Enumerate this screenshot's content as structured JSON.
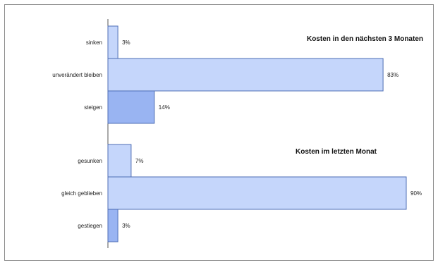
{
  "chart_data": [
    {
      "type": "bar",
      "orientation": "horizontal",
      "title": "Kosten in den nächsten 3 Monaten",
      "categories": [
        "sinken",
        "unverändert bleiben",
        "steigen"
      ],
      "values": [
        3,
        83,
        14
      ],
      "value_labels": [
        "3%",
        "83%",
        "14%"
      ],
      "colors": [
        "#c5d6fb",
        "#c5d6fb",
        "#99b4f2"
      ],
      "xlim": [
        0,
        100
      ],
      "grid": false,
      "legend": "none"
    },
    {
      "type": "bar",
      "orientation": "horizontal",
      "title": "Kosten im letzten Monat",
      "categories": [
        "gesunken",
        "gleich geblieben",
        "gestiegen"
      ],
      "values": [
        7,
        90,
        3
      ],
      "value_labels": [
        "7%",
        "90%",
        "3%"
      ],
      "colors": [
        "#c5d6fb",
        "#c5d6fb",
        "#99b4f2"
      ],
      "xlim": [
        0,
        100
      ],
      "grid": false,
      "legend": "none"
    }
  ],
  "colors": {
    "bar_light": "#c5d6fb",
    "bar_dark": "#99b4f2",
    "bar_stroke": "#4d6db5",
    "axis": "#555555"
  }
}
